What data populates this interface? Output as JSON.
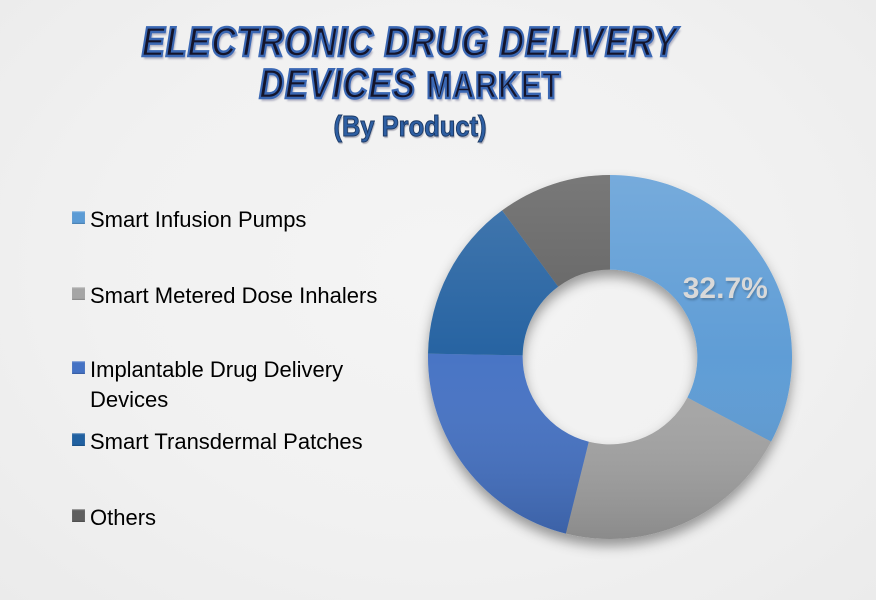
{
  "title": {
    "line1": "ELECTRONIC DRUG DELIVERY",
    "line2_italic": "DEVICES ",
    "line2_regular": "MARKET",
    "subtitle": "(By Product)"
  },
  "colors": {
    "background": "#F0F0F0",
    "title_fill": "#14142A",
    "title_outline": "#3A67B3",
    "subtitle_blue": "#2E5FA3",
    "data_label_gray": "#D9D9D9",
    "legend_text": "#000000"
  },
  "legend": {
    "position": "left",
    "items": [
      {
        "label": "Smart Infusion Pumps",
        "color": "#5B9BD5"
      },
      {
        "label": "Smart Metered Dose Inhalers",
        "color": "#A5A5A5"
      },
      {
        "label": "Implantable Drug Delivery\nDevices",
        "color": "#4472C4"
      },
      {
        "label": "Smart Transdermal Patches",
        "color": "#2060A0"
      },
      {
        "label": "Others",
        "color": "#5E5E5E"
      }
    ]
  },
  "chart_data": {
    "type": "pie",
    "subtype": "donut",
    "title": "Electronic Drug Delivery Devices Market (By Product)",
    "start_angle_deg": 0,
    "direction": "clockwise",
    "inner_radius_ratio": 0.48,
    "legend_position": "left",
    "slices": [
      {
        "name": "Smart Infusion Pumps",
        "value": 32.7,
        "color": "#5B9BD5",
        "label": "32.7%",
        "label_color": "#D9D9D9"
      },
      {
        "name": "Smart Metered Dose Inhalers",
        "value": 21.2,
        "color": "#A5A5A5"
      },
      {
        "name": "Implantable Drug Delivery Devices",
        "value": 21.4,
        "color": "#4472C4"
      },
      {
        "name": "Smart Transdermal Patches",
        "value": 14.6,
        "color": "#2060A0"
      },
      {
        "name": "Others",
        "value": 10.1,
        "color": "#5E5E5E"
      }
    ]
  }
}
